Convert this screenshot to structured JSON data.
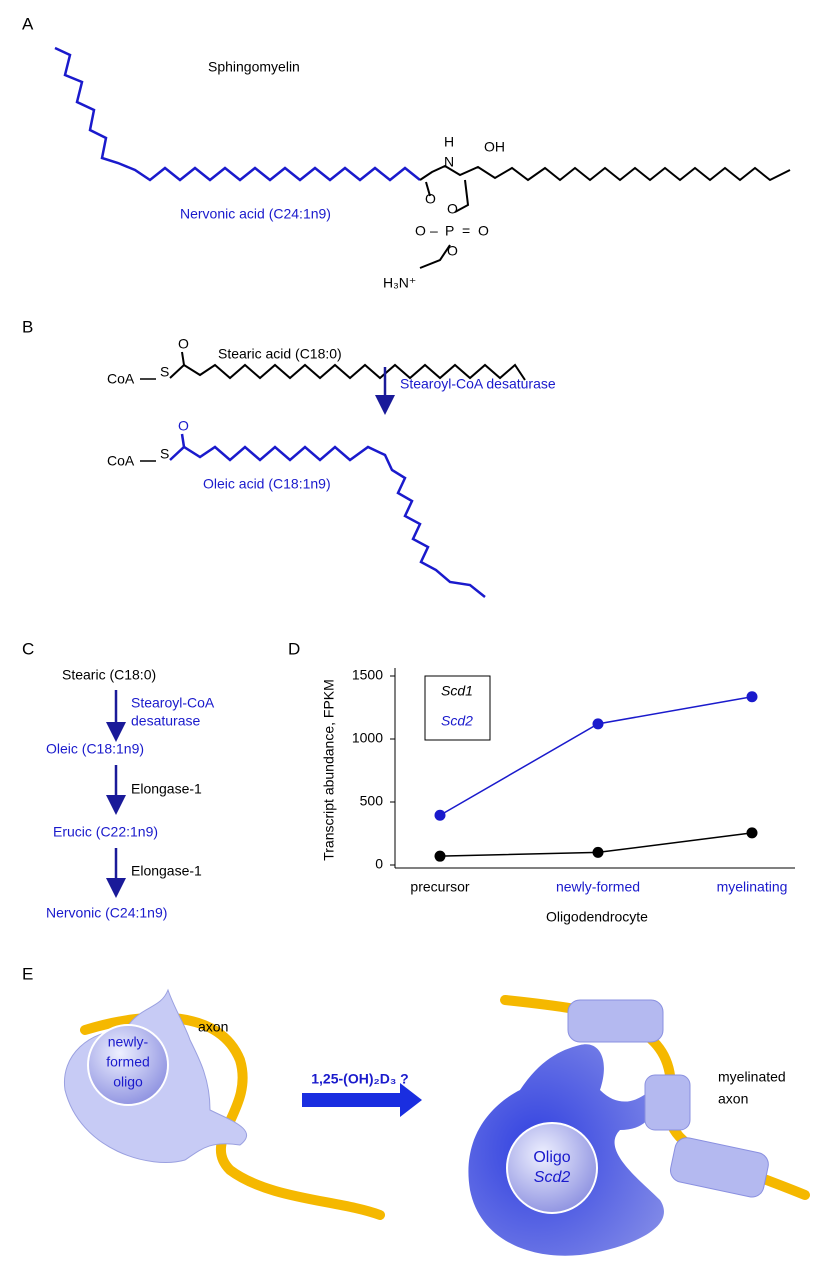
{
  "panel_a": {
    "label": "A",
    "title": "Sphingomyelin",
    "fatty_acid": "Nervonic acid (C24:1n9)",
    "atoms": [
      "H",
      "N",
      "OH",
      "O",
      "O",
      "O",
      "–",
      "P",
      "=",
      "O",
      "O",
      "H₃N⁺"
    ]
  },
  "panel_b": {
    "label": "B",
    "substrate": "Stearic acid (C18:0)",
    "enzyme": "Stearoyl-CoA desaturase",
    "product": "Oleic acid (C18:1n9)",
    "atoms_top": [
      "CoA",
      "S",
      "O"
    ],
    "atoms_bottom": [
      "CoA",
      "S",
      "O"
    ]
  },
  "panel_c": {
    "label": "C",
    "steps": [
      "Stearic (C18:0)",
      "Oleic (C18:1n9)",
      "Erucic (C22:1n9)",
      "Nervonic (C24:1n9)"
    ],
    "enzymes": [
      [
        "Stearoyl-CoA",
        "desaturase"
      ],
      [
        "Elongase-1"
      ],
      [
        "Elongase-1"
      ]
    ]
  },
  "panel_d": {
    "label": "D",
    "chart_data": {
      "type": "line",
      "categories": [
        "precursor",
        "newly-formed",
        "myelinating"
      ],
      "category_colors": [
        "#000000",
        "#1a1acc",
        "#1a1acc"
      ],
      "xlabel": "Oligodendrocyte",
      "ylabel": "Transcript abundance, FPKM",
      "ylim": [
        0,
        1500
      ],
      "yticks": [
        0,
        500,
        1000,
        1500
      ],
      "series": [
        {
          "name": "Scd1",
          "color": "#000000",
          "values": [
            70,
            100,
            255
          ]
        },
        {
          "name": "Scd2",
          "color": "#1a1acc",
          "values": [
            395,
            1120,
            1335
          ]
        }
      ]
    }
  },
  "panel_e": {
    "label": "E",
    "axon": "axon",
    "cell_lines": [
      "newly-",
      "formed",
      "oligo"
    ],
    "treatment": "1,25-(OH)₂D₃ ?",
    "myelinated_lines": [
      "myelinated",
      "axon"
    ],
    "oligo": "Oligo",
    "gene": "Scd2"
  }
}
